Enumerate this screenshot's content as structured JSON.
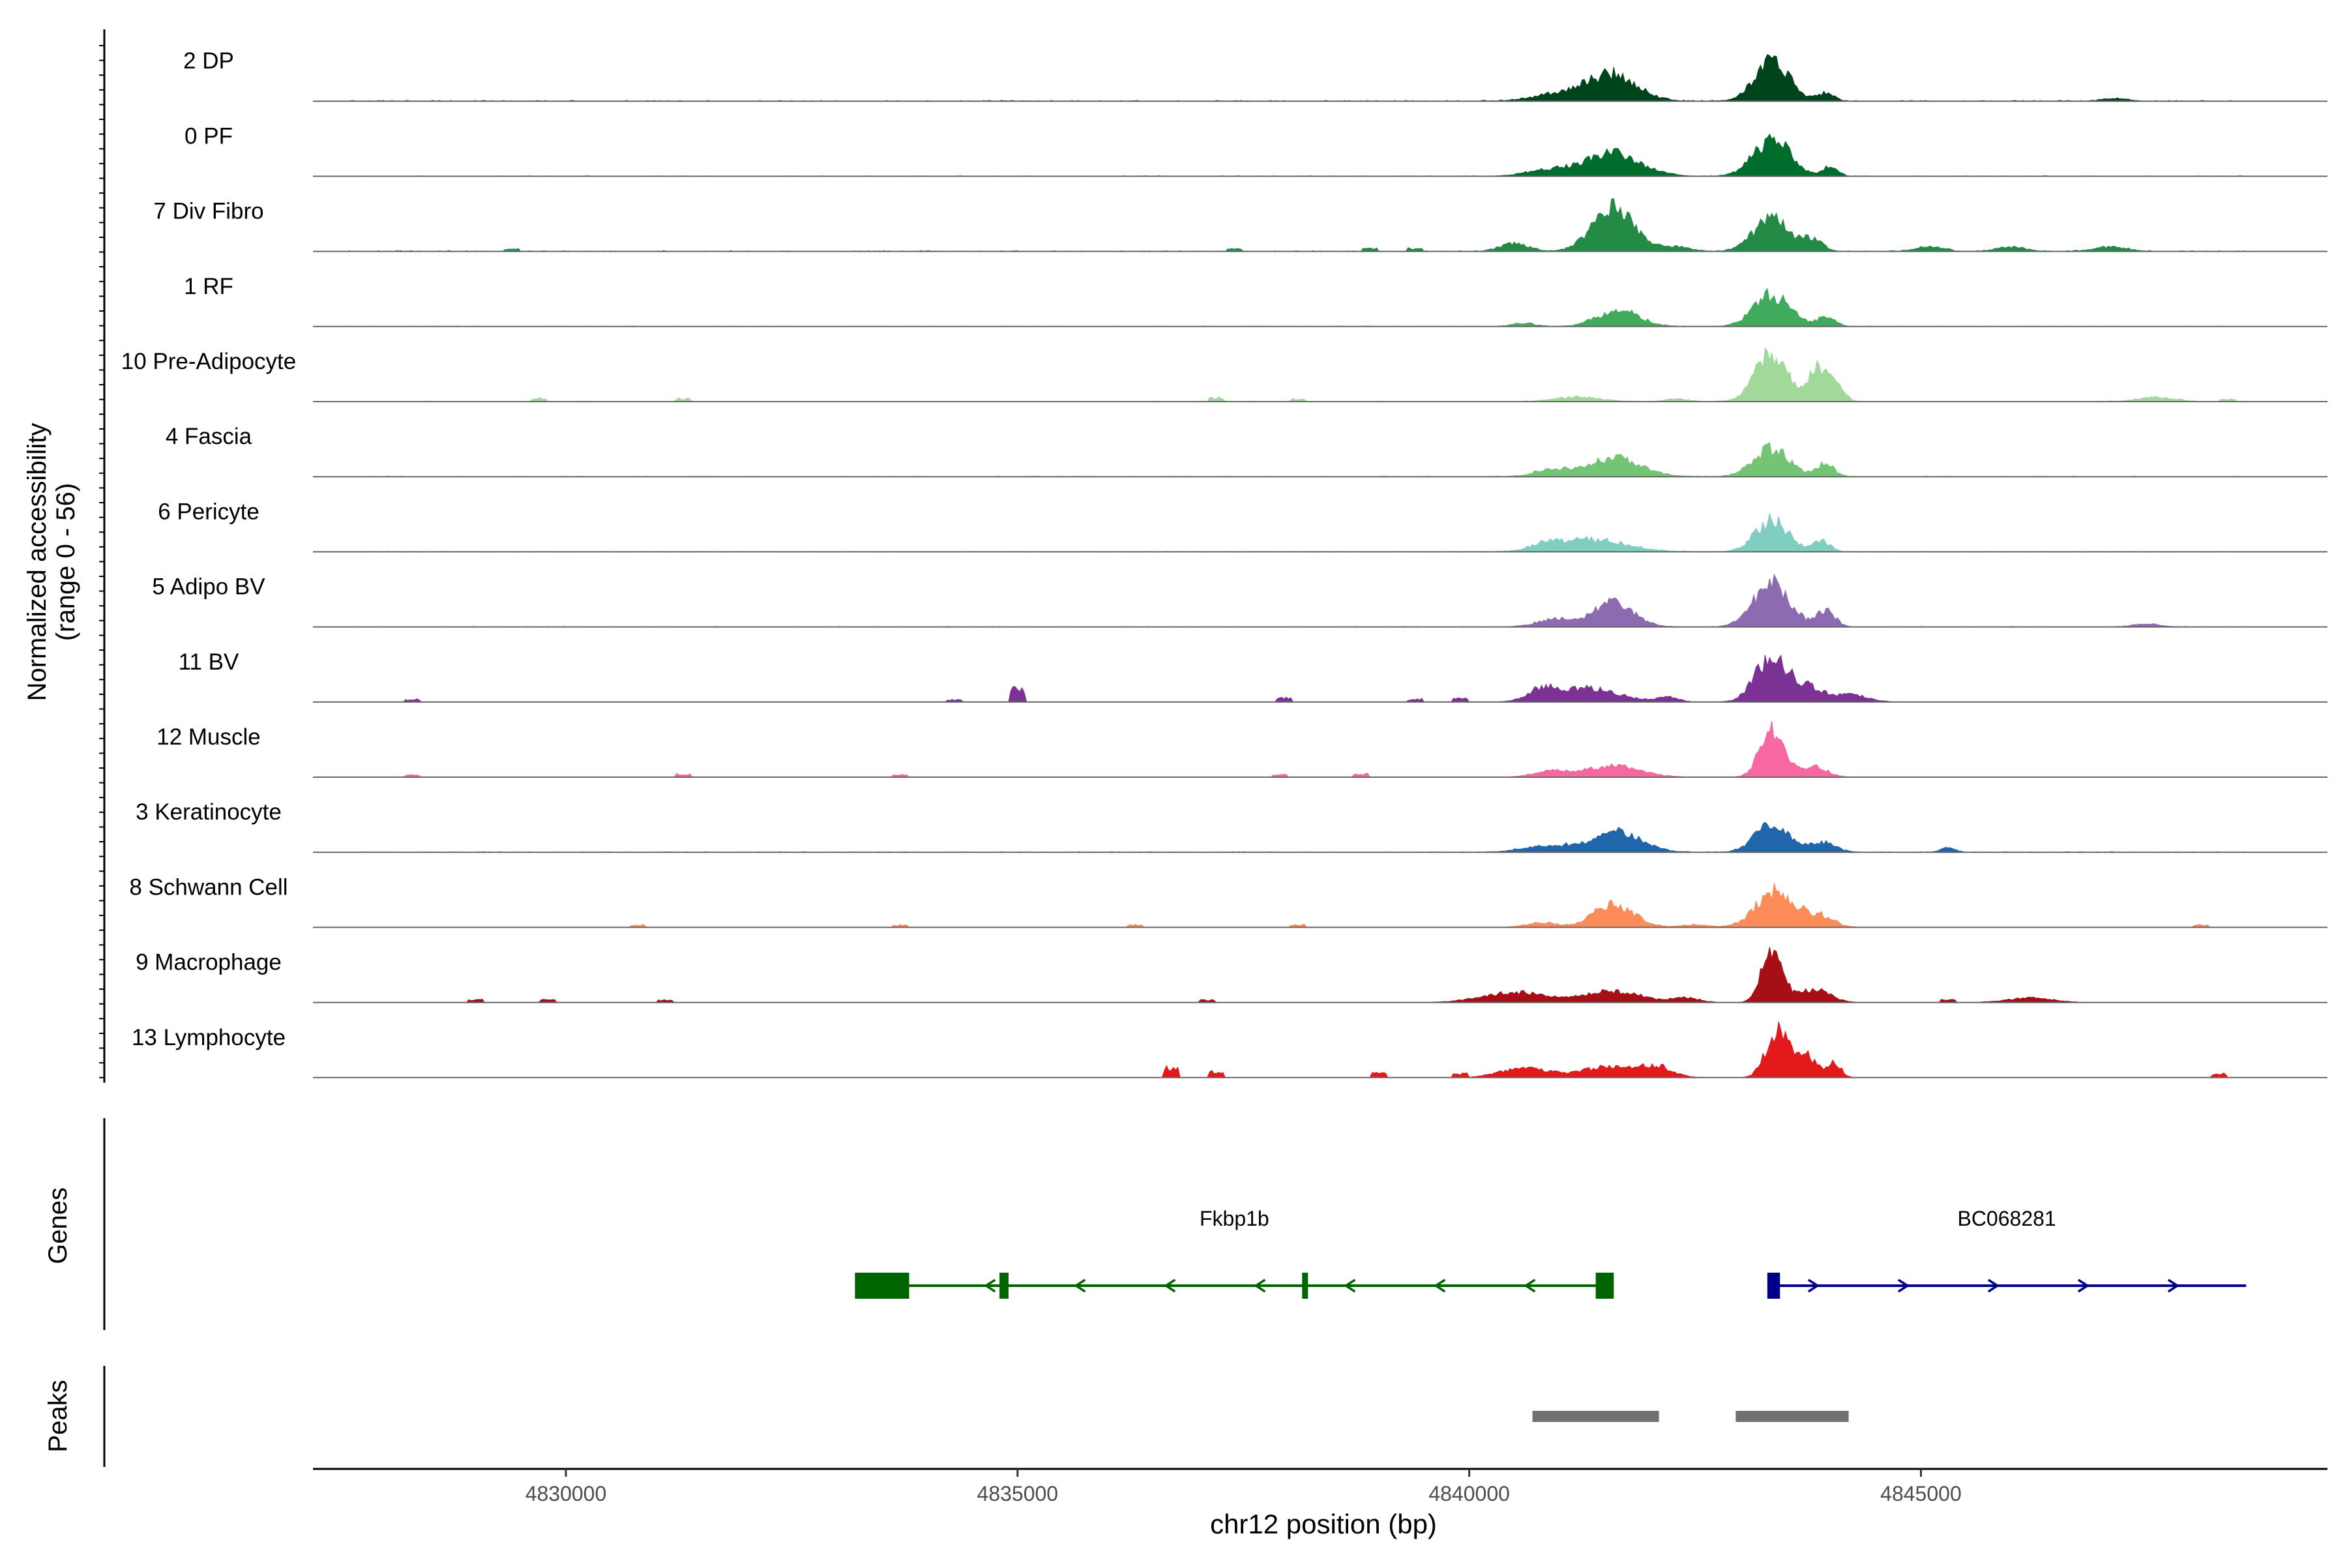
{
  "chart_data": {
    "type": "area",
    "title": "",
    "ylabel_line1": "Normalized accessibility",
    "ylabel_line2": "(range 0 - 56)",
    "xlabel": "chr12 position (bp)",
    "chromosome": "chr12",
    "xlim": [
      4827200,
      4849500
    ],
    "ylim": [
      0,
      56
    ],
    "xticks": [
      {
        "value": 4830000,
        "label": "4830000"
      },
      {
        "value": 4835000,
        "label": "4835000"
      },
      {
        "value": 4840000,
        "label": "4840000"
      },
      {
        "value": 4845000,
        "label": "4845000"
      }
    ],
    "tracks": [
      {
        "name": "2 DP",
        "color": "#00441b",
        "peaks": [
          [
            4841600,
            46,
            260
          ],
          [
            4843350,
            70,
            190
          ],
          [
            4841050,
            14,
            300
          ],
          [
            4843950,
            14,
            90
          ],
          [
            4847150,
            5,
            130
          ]
        ],
        "baseline": 1.5,
        "islands": []
      },
      {
        "name": "0 PF",
        "color": "#006d2c",
        "peaks": [
          [
            4841600,
            40,
            300
          ],
          [
            4843350,
            66,
            200
          ],
          [
            4840900,
            12,
            250
          ],
          [
            4844000,
            18,
            80
          ]
        ],
        "baseline": 1.0,
        "islands": []
      },
      {
        "name": "7 Div Fibro",
        "color": "#238b45",
        "peaks": [
          [
            4841600,
            76,
            230
          ],
          [
            4843350,
            56,
            200
          ],
          [
            4843800,
            20,
            110
          ],
          [
            4840500,
            14,
            150
          ],
          [
            4842300,
            8,
            150
          ],
          [
            4845100,
            8,
            150
          ],
          [
            4846000,
            8,
            150
          ],
          [
            4847100,
            8,
            180
          ]
        ],
        "baseline": 1.5,
        "islands": [
          [
            4829400,
            5
          ],
          [
            4837400,
            6
          ],
          [
            4838900,
            6
          ],
          [
            4839400,
            6
          ]
        ]
      },
      {
        "name": "1 RF",
        "color": "#41ab5d",
        "peaks": [
          [
            4841650,
            28,
            230
          ],
          [
            4843350,
            56,
            200
          ],
          [
            4843950,
            16,
            100
          ],
          [
            4840600,
            6,
            120
          ]
        ],
        "baseline": 1.0,
        "islands": []
      },
      {
        "name": "10 Pre-Adipocyte",
        "color": "#a1d99b",
        "peaks": [
          [
            4843350,
            86,
            180
          ],
          [
            4843850,
            56,
            90
          ],
          [
            4844050,
            36,
            90
          ],
          [
            4841200,
            8,
            250
          ],
          [
            4842300,
            5,
            120
          ],
          [
            4847600,
            8,
            200
          ]
        ],
        "baseline": 1.0,
        "islands": [
          [
            4829700,
            6
          ],
          [
            4831300,
            6
          ],
          [
            4837200,
            7
          ],
          [
            4838100,
            5
          ],
          [
            4848400,
            5
          ]
        ]
      },
      {
        "name": "4 Fascia",
        "color": "#74c476",
        "peaks": [
          [
            4841600,
            34,
            300
          ],
          [
            4843350,
            50,
            200
          ],
          [
            4843950,
            24,
            90
          ],
          [
            4840900,
            12,
            180
          ]
        ],
        "baseline": 1.0,
        "islands": []
      },
      {
        "name": "6 Pericyte",
        "color": "#80cdc1",
        "peaks": [
          [
            4841350,
            22,
            380
          ],
          [
            4843350,
            56,
            180
          ],
          [
            4843900,
            20,
            90
          ],
          [
            4840850,
            10,
            150
          ]
        ],
        "baseline": 1.0,
        "islands": []
      },
      {
        "name": "5 Adipo BV",
        "color": "#8c6bb1",
        "peaks": [
          [
            4841600,
            44,
            220
          ],
          [
            4843350,
            76,
            200
          ],
          [
            4843950,
            28,
            100
          ],
          [
            4840950,
            14,
            200
          ],
          [
            4847500,
            5,
            150
          ]
        ],
        "baseline": 1.0,
        "islands": []
      },
      {
        "name": "11 BV",
        "color": "#7b3294",
        "peaks": [
          [
            4843350,
            80,
            180
          ],
          [
            4843750,
            24,
            150
          ],
          [
            4844200,
            14,
            200
          ],
          [
            4841300,
            24,
            350
          ],
          [
            4840800,
            18,
            150
          ],
          [
            4842200,
            8,
            120
          ]
        ],
        "baseline": 0,
        "islands": [
          [
            4828300,
            6
          ],
          [
            4834300,
            5
          ],
          [
            4835000,
            28
          ],
          [
            4837950,
            8
          ],
          [
            4839400,
            6
          ],
          [
            4839900,
            8
          ]
        ]
      },
      {
        "name": "12 Muscle",
        "color": "#f768a1",
        "peaks": [
          [
            4843350,
            88,
            130
          ],
          [
            4841600,
            20,
            300
          ],
          [
            4840900,
            10,
            200
          ],
          [
            4843800,
            20,
            150
          ]
        ],
        "baseline": 0,
        "islands": [
          [
            4828300,
            5
          ],
          [
            4831300,
            6
          ],
          [
            4833700,
            5
          ],
          [
            4837900,
            5
          ],
          [
            4838800,
            6
          ]
        ]
      },
      {
        "name": "3 Keratinocyte",
        "color": "#2166ac",
        "peaks": [
          [
            4841650,
            36,
            260
          ],
          [
            4843350,
            52,
            180
          ],
          [
            4843900,
            18,
            150
          ],
          [
            4840900,
            12,
            280
          ],
          [
            4845300,
            8,
            80
          ]
        ],
        "baseline": 1.0,
        "islands": []
      },
      {
        "name": "8 Schwann Cell",
        "color": "#fc8d59",
        "peaks": [
          [
            4841600,
            40,
            230
          ],
          [
            4843400,
            64,
            220
          ],
          [
            4843900,
            18,
            150
          ],
          [
            4840800,
            8,
            180
          ],
          [
            4842500,
            5,
            150
          ]
        ],
        "baseline": 0,
        "islands": [
          [
            4830800,
            5
          ],
          [
            4833700,
            5
          ],
          [
            4836300,
            5
          ],
          [
            4838100,
            5
          ],
          [
            4848100,
            5
          ]
        ]
      },
      {
        "name": "9 Macrophage",
        "color": "#a50f15",
        "peaks": [
          [
            4843350,
            94,
            110
          ],
          [
            4843800,
            24,
            180
          ],
          [
            4840500,
            18,
            350
          ],
          [
            4841600,
            20,
            300
          ],
          [
            4842400,
            8,
            150
          ],
          [
            4846200,
            8,
            250
          ]
        ],
        "baseline": 0,
        "islands": [
          [
            4829000,
            6
          ],
          [
            4829800,
            6
          ],
          [
            4831100,
            5
          ],
          [
            4837100,
            6
          ],
          [
            4845300,
            6
          ]
        ]
      },
      {
        "name": "13 Lymphocyte",
        "color": "#e31a1c",
        "peaks": [
          [
            4843400,
            76,
            120
          ],
          [
            4843700,
            40,
            150
          ],
          [
            4844050,
            24,
            70
          ],
          [
            4840600,
            18,
            250
          ],
          [
            4841600,
            20,
            350
          ],
          [
            4842100,
            14,
            150
          ]
        ],
        "baseline": 0,
        "islands": [
          [
            4836700,
            18
          ],
          [
            4837200,
            12
          ],
          [
            4839000,
            10
          ],
          [
            4839900,
            8
          ],
          [
            4848300,
            8
          ]
        ]
      }
    ],
    "genes_label": "Genes",
    "genes": [
      {
        "name": "Fkbp1b",
        "start": 4833200,
        "end": 4841600,
        "strand": "-",
        "color": "#006400",
        "exons": [
          [
            4833200,
            4833800,
            "utr"
          ],
          [
            4834800,
            4834900,
            "cds"
          ],
          [
            4838150,
            4838200,
            "cds"
          ],
          [
            4841400,
            4841600,
            "utr"
          ]
        ]
      },
      {
        "name": "BC068281",
        "start": 4843300,
        "end": 4848600,
        "strand": "+",
        "color": "#00008b",
        "exons": [
          [
            4843300,
            4843440,
            "utr"
          ]
        ]
      }
    ],
    "peaks_label": "Peaks",
    "peak_regions": [
      [
        4840700,
        4842100
      ],
      [
        4842950,
        4844200
      ]
    ]
  }
}
